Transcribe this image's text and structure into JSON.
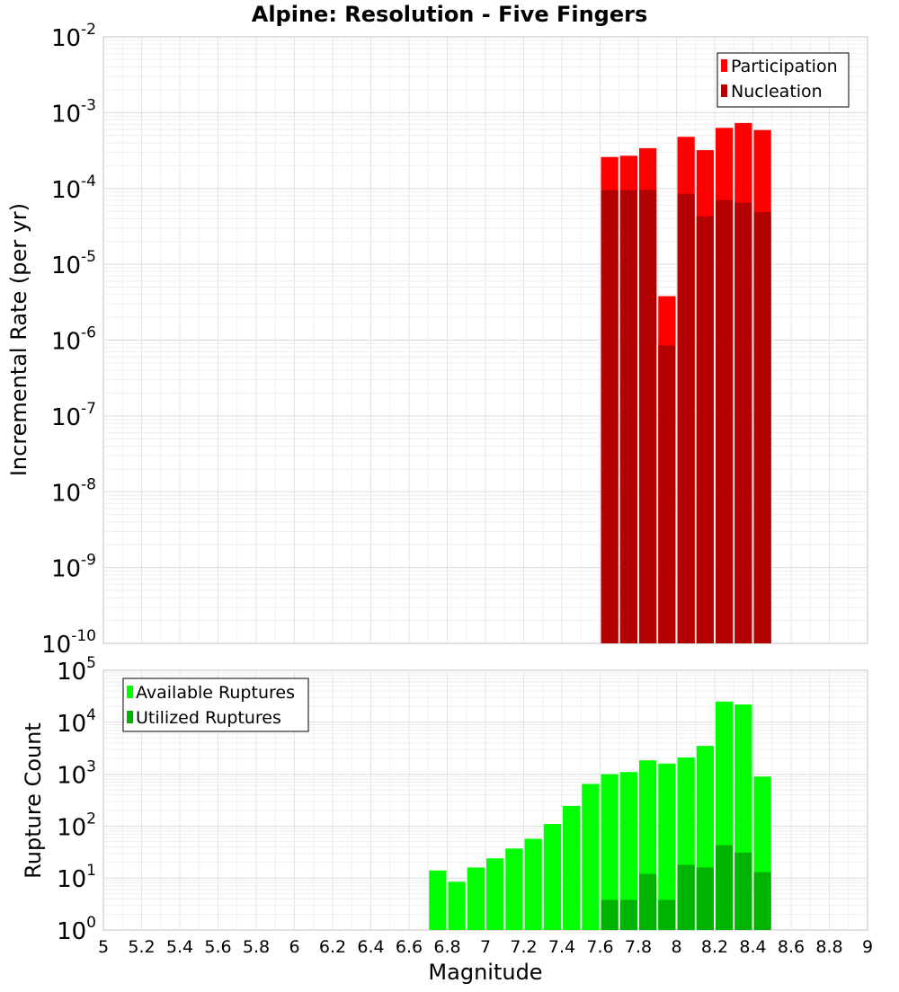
{
  "chart_data": [
    {
      "type": "bar",
      "title": "Alpine: Resolution - Five Fingers",
      "ylabel": "Incremental Rate (per yr)",
      "xlim": [
        5,
        9
      ],
      "ylim": [
        1e-10,
        0.01
      ],
      "yscale": "log",
      "grid": true,
      "legend_position": "top-right",
      "bin_width": 0.1,
      "x": [
        7.65,
        7.75,
        7.85,
        7.95,
        8.05,
        8.15,
        8.25,
        8.35,
        8.45
      ],
      "series": [
        {
          "name": "Participation",
          "color": "#ff0000",
          "values": [
            0.00026,
            0.00027,
            0.00034,
            3.8e-06,
            0.00048,
            0.00032,
            0.00063,
            0.00073,
            0.00059
          ]
        },
        {
          "name": "Nucleation",
          "color": "#b30000",
          "values": [
            9.5e-05,
            9.5e-05,
            9.6e-05,
            8.5e-07,
            8.5e-05,
            4.3e-05,
            7e-05,
            6.5e-05,
            4.9e-05
          ]
        }
      ]
    },
    {
      "type": "bar",
      "xlabel": "Magnitude",
      "ylabel": "Rupture Count",
      "xlim": [
        5,
        9
      ],
      "ylim": [
        1,
        100000
      ],
      "yscale": "log",
      "grid": true,
      "legend_position": "top-left",
      "bin_width": 0.1,
      "x": [
        6.75,
        6.85,
        6.95,
        7.05,
        7.15,
        7.25,
        7.35,
        7.45,
        7.55,
        7.65,
        7.75,
        7.85,
        7.95,
        8.05,
        8.15,
        8.25,
        8.35,
        8.45
      ],
      "series": [
        {
          "name": "Available Ruptures",
          "color": "#00ff00",
          "values": [
            14,
            8.5,
            16,
            24,
            37,
            57,
            110,
            245,
            650,
            1000,
            1100,
            1850,
            1600,
            2100,
            3500,
            25000,
            22000,
            900
          ]
        },
        {
          "name": "Utilized Ruptures",
          "color": "#00b300",
          "values": [
            null,
            null,
            null,
            null,
            null,
            null,
            null,
            null,
            null,
            3.8,
            3.8,
            12,
            3.8,
            18,
            16,
            43,
            31,
            13
          ]
        }
      ]
    }
  ],
  "x_tick_labels": [
    "5",
    "5.2",
    "5.4",
    "5.6",
    "5.8",
    "6",
    "6.2",
    "6.4",
    "6.6",
    "6.8",
    "7",
    "7.2",
    "7.4",
    "7.6",
    "7.8",
    "8",
    "8.2",
    "8.4",
    "8.6",
    "8.8",
    "9"
  ],
  "top_y_ticks": [
    {
      "base": "10",
      "exp": "-2"
    },
    {
      "base": "10",
      "exp": "-3"
    },
    {
      "base": "10",
      "exp": "-4"
    },
    {
      "base": "10",
      "exp": "-5"
    },
    {
      "base": "10",
      "exp": "-6"
    },
    {
      "base": "10",
      "exp": "-7"
    },
    {
      "base": "10",
      "exp": "-8"
    },
    {
      "base": "10",
      "exp": "-9"
    },
    {
      "base": "10",
      "exp": "-10"
    }
  ],
  "bottom_y_ticks": [
    {
      "base": "10",
      "exp": "5"
    },
    {
      "base": "10",
      "exp": "4"
    },
    {
      "base": "10",
      "exp": "3"
    },
    {
      "base": "10",
      "exp": "2"
    },
    {
      "base": "10",
      "exp": "1"
    },
    {
      "base": "10",
      "exp": "0"
    }
  ]
}
